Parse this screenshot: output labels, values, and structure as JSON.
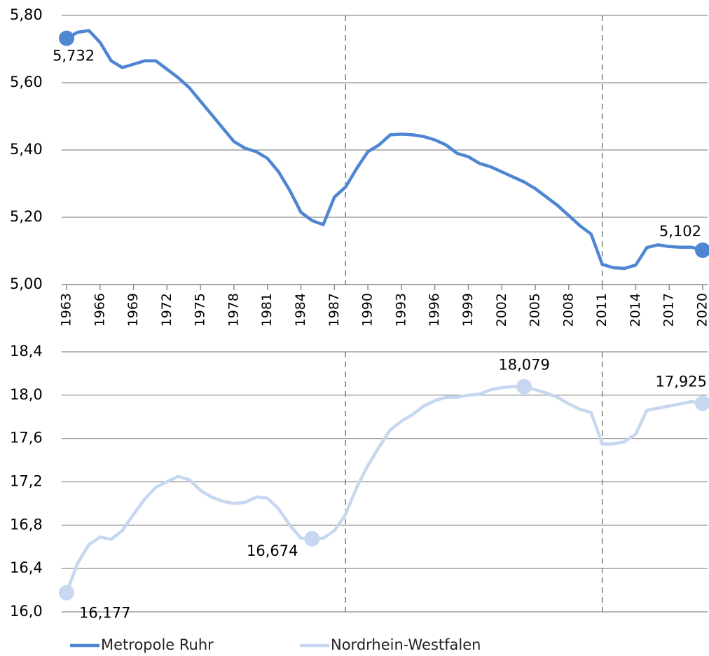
{
  "chart_data": [
    {
      "type": "line",
      "xlim": [
        1963,
        2020
      ],
      "ylim": [
        5.0,
        5.8
      ],
      "yticks": [
        {
          "value": 5.0,
          "label": "5,00"
        },
        {
          "value": 5.2,
          "label": "5,20"
        },
        {
          "value": 5.4,
          "label": "5,40"
        },
        {
          "value": 5.6,
          "label": "5,60"
        },
        {
          "value": 5.8,
          "label": "5,80"
        }
      ],
      "xticks": [
        1963,
        1966,
        1969,
        1972,
        1975,
        1978,
        1981,
        1984,
        1987,
        1990,
        1993,
        1996,
        1999,
        2002,
        2005,
        2008,
        2011,
        2014,
        2017,
        2020
      ],
      "vlines": [
        1988,
        2011
      ],
      "grid": true,
      "x": [
        1963,
        1964,
        1965,
        1966,
        1967,
        1968,
        1969,
        1970,
        1971,
        1972,
        1973,
        1974,
        1975,
        1976,
        1977,
        1978,
        1979,
        1980,
        1981,
        1982,
        1983,
        1984,
        1985,
        1986,
        1987,
        1988,
        1989,
        1990,
        1991,
        1992,
        1993,
        1994,
        1995,
        1996,
        1997,
        1998,
        1999,
        2000,
        2001,
        2002,
        2003,
        2004,
        2005,
        2006,
        2007,
        2008,
        2009,
        2010,
        2011,
        2012,
        2013,
        2014,
        2015,
        2016,
        2017,
        2018,
        2019,
        2020
      ],
      "series": [
        {
          "name": "Metropole Ruhr",
          "color": "#4f86d2",
          "values": [
            5.732,
            5.75,
            5.755,
            5.72,
            5.665,
            5.645,
            5.655,
            5.665,
            5.665,
            5.64,
            5.615,
            5.585,
            5.545,
            5.505,
            5.465,
            5.425,
            5.405,
            5.395,
            5.375,
            5.335,
            5.28,
            5.215,
            5.19,
            5.178,
            5.26,
            5.29,
            5.345,
            5.395,
            5.415,
            5.445,
            5.447,
            5.445,
            5.44,
            5.43,
            5.415,
            5.39,
            5.38,
            5.36,
            5.35,
            5.335,
            5.32,
            5.305,
            5.285,
            5.26,
            5.235,
            5.205,
            5.175,
            5.15,
            5.06,
            5.05,
            5.048,
            5.058,
            5.11,
            5.118,
            5.113,
            5.111,
            5.111,
            5.102
          ],
          "value_labels": [
            "5,732",
            null,
            null,
            null,
            null,
            null,
            null,
            null,
            null,
            null,
            null,
            null,
            null,
            null,
            null,
            null,
            null,
            null,
            null,
            null,
            null,
            null,
            null,
            null,
            null,
            null,
            null,
            null,
            null,
            null,
            null,
            null,
            null,
            null,
            null,
            null,
            null,
            null,
            null,
            null,
            null,
            null,
            null,
            null,
            null,
            null,
            null,
            null,
            null,
            null,
            null,
            null,
            null,
            null,
            null,
            null,
            null,
            "5,102"
          ]
        }
      ]
    },
    {
      "type": "line",
      "xlim": [
        1963,
        2020
      ],
      "ylim": [
        16.0,
        18.4
      ],
      "yticks": [
        {
          "value": 16.0,
          "label": "16,0"
        },
        {
          "value": 16.4,
          "label": "16,4"
        },
        {
          "value": 16.8,
          "label": "16,8"
        },
        {
          "value": 17.2,
          "label": "17,2"
        },
        {
          "value": 17.6,
          "label": "17,6"
        },
        {
          "value": 18.0,
          "label": "18,0"
        },
        {
          "value": 18.4,
          "label": "18,4"
        }
      ],
      "vlines": [
        1988,
        2011
      ],
      "grid": true,
      "x": [
        1963,
        1964,
        1965,
        1966,
        1967,
        1968,
        1969,
        1970,
        1971,
        1972,
        1973,
        1974,
        1975,
        1976,
        1977,
        1978,
        1979,
        1980,
        1981,
        1982,
        1983,
        1984,
        1985,
        1986,
        1987,
        1988,
        1989,
        1990,
        1991,
        1992,
        1993,
        1994,
        1995,
        1996,
        1997,
        1998,
        1999,
        2000,
        2001,
        2002,
        2003,
        2004,
        2005,
        2006,
        2007,
        2008,
        2009,
        2010,
        2011,
        2012,
        2013,
        2014,
        2015,
        2016,
        2017,
        2018,
        2019,
        2020
      ],
      "series": [
        {
          "name": "Nordrhein-Westfalen",
          "color": "#c6d7ef",
          "values": [
            16.177,
            16.45,
            16.62,
            16.69,
            16.67,
            16.75,
            16.9,
            17.04,
            17.15,
            17.2,
            17.25,
            17.22,
            17.12,
            17.06,
            17.02,
            17.0,
            17.01,
            17.06,
            17.05,
            16.95,
            16.8,
            16.68,
            16.674,
            16.68,
            16.75,
            16.9,
            17.15,
            17.35,
            17.52,
            17.68,
            17.76,
            17.82,
            17.9,
            17.95,
            17.98,
            17.98,
            18.0,
            18.01,
            18.05,
            18.07,
            18.08,
            18.079,
            18.05,
            18.02,
            17.98,
            17.92,
            17.87,
            17.84,
            17.55,
            17.55,
            17.57,
            17.64,
            17.86,
            17.88,
            17.9,
            17.92,
            17.94,
            17.925
          ],
          "value_labels": [
            "16,177",
            null,
            null,
            null,
            null,
            null,
            null,
            null,
            null,
            null,
            null,
            null,
            null,
            null,
            null,
            null,
            null,
            null,
            null,
            null,
            null,
            null,
            "16,674",
            null,
            null,
            null,
            null,
            null,
            null,
            null,
            null,
            null,
            null,
            null,
            null,
            null,
            null,
            null,
            null,
            null,
            null,
            "18,079",
            null,
            null,
            null,
            null,
            null,
            null,
            null,
            null,
            null,
            null,
            null,
            null,
            null,
            null,
            null,
            "17,925"
          ]
        }
      ]
    }
  ]
}
